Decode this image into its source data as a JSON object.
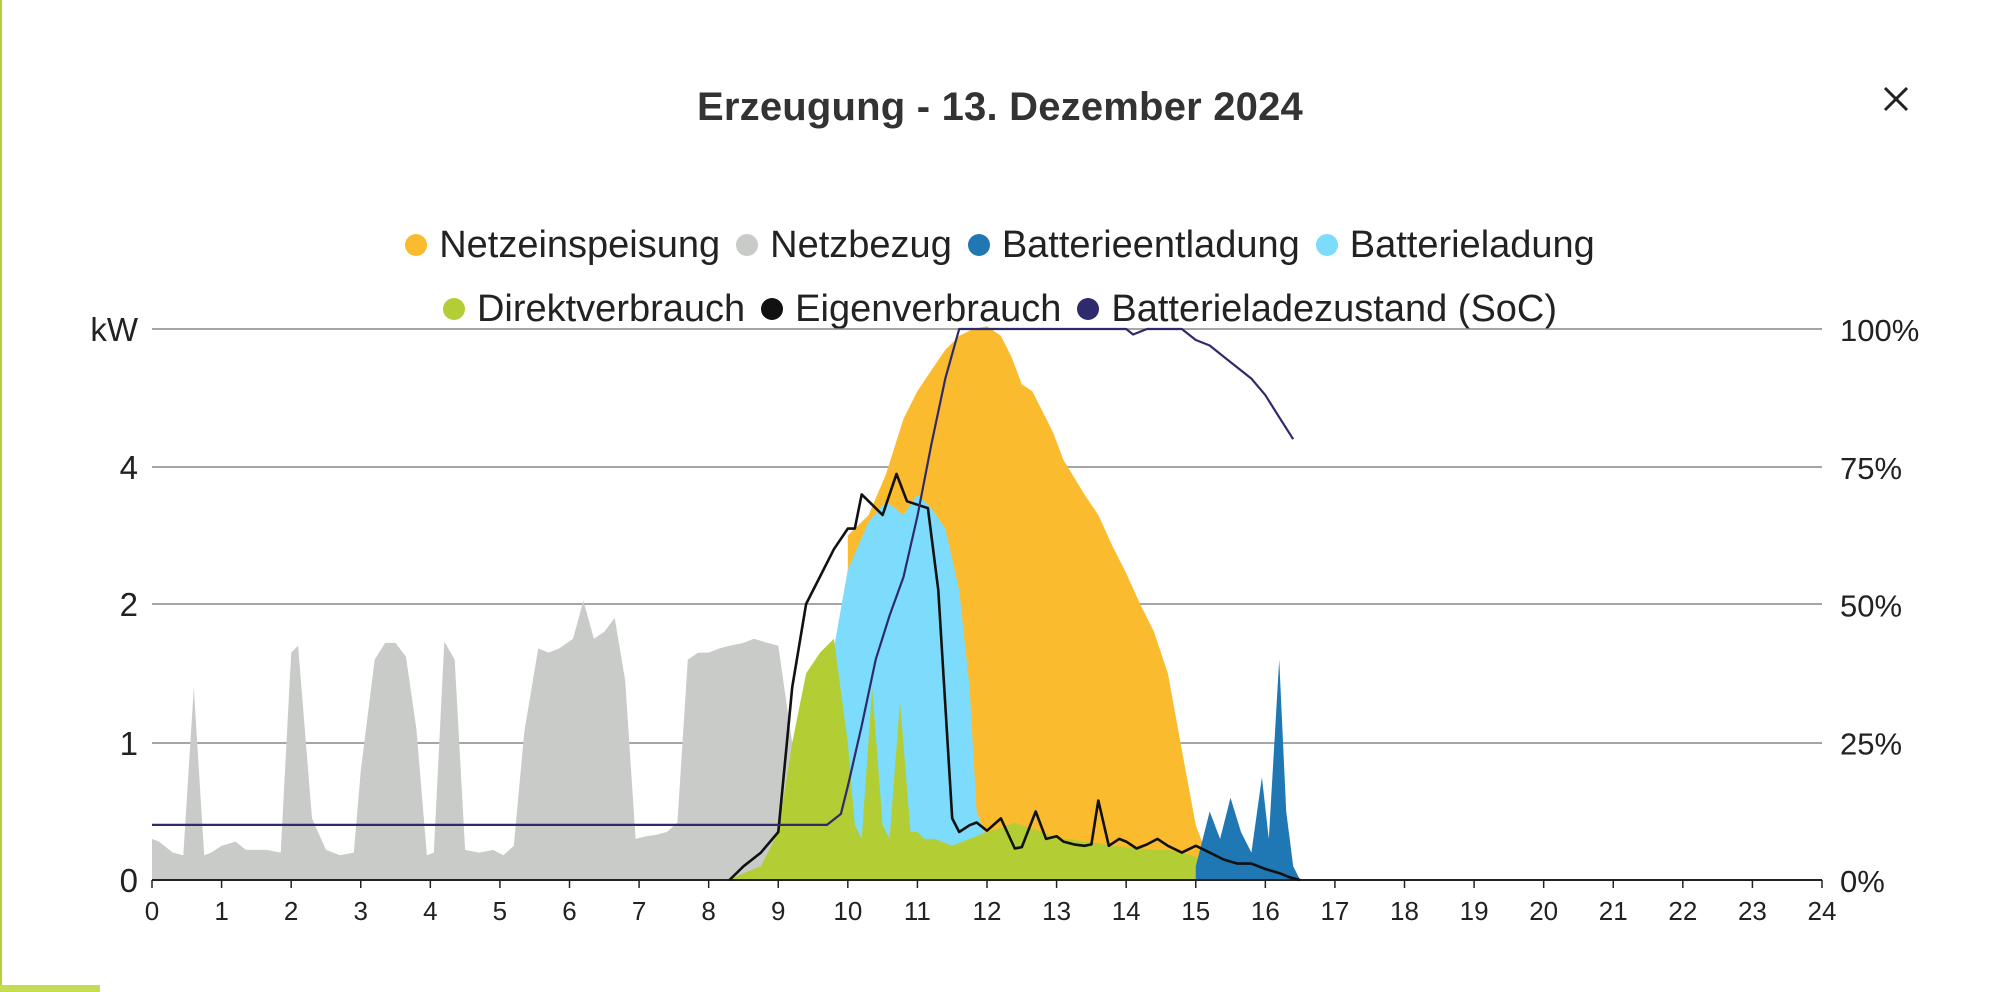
{
  "header": {
    "title": "Erzeugung - 13. Dezember 2024",
    "close_icon": "close-icon"
  },
  "colors": {
    "Netzeinspeisung": "#fbbb2f",
    "Netzbezug": "#c9cbc9",
    "Batterieentladung": "#1f78b4",
    "Batterieladung": "#7ddcfb",
    "Direktverbrauch": "#b3cd34",
    "Eigenverbrauch": "#111111",
    "Batterieladezustand (SoC)": "#2e2a6b",
    "gridline": "#888888"
  },
  "chart_data": {
    "type": "area",
    "title": "Erzeugung - 13. Dezember 2024",
    "xlabel": "",
    "ylabel": "kW",
    "y2label": "",
    "xlim": [
      0,
      24
    ],
    "x_ticks": [
      "0",
      "1",
      "2",
      "3",
      "4",
      "5",
      "6",
      "7",
      "8",
      "9",
      "10",
      "11",
      "12",
      "13",
      "14",
      "15",
      "16",
      "17",
      "18",
      "19",
      "20",
      "21",
      "22",
      "23",
      "24"
    ],
    "y_ticks_left": [
      "0",
      "1",
      "2",
      "4"
    ],
    "y_tick_values_left": [
      0,
      1,
      2,
      4
    ],
    "y_ticks_right": [
      "0%",
      "25%",
      "50%",
      "75%",
      "100%"
    ],
    "y_scale_left": "piecewise: 0-2 linear per 1 kW, 2-4 compressed",
    "grid": true,
    "legend_position": "top-center",
    "legend": [
      "Netzeinspeisung",
      "Netzbezug",
      "Batterieentladung",
      "Batterieladung",
      "Direktverbrauch",
      "Eigenverbrauch",
      "Batterieladezustand (SoC)"
    ],
    "series": [
      {
        "name": "Netzbezug",
        "kind": "area",
        "x": [
          0,
          0.1,
          0.3,
          0.45,
          0.6,
          0.75,
          0.85,
          1.0,
          1.2,
          1.35,
          1.5,
          1.65,
          1.85,
          2.0,
          2.1,
          2.3,
          2.5,
          2.7,
          2.9,
          3.0,
          3.2,
          3.35,
          3.5,
          3.65,
          3.8,
          3.95,
          4.05,
          4.2,
          4.35,
          4.5,
          4.7,
          4.9,
          5.05,
          5.2,
          5.35,
          5.55,
          5.7,
          5.85,
          6.05,
          6.2,
          6.35,
          6.5,
          6.65,
          6.8,
          6.95,
          7.1,
          7.25,
          7.4,
          7.55,
          7.7,
          7.85,
          8.0,
          8.15,
          8.3,
          8.5,
          8.65,
          8.85,
          9.0,
          9.2,
          9.4,
          9.55,
          9.7,
          9.8
        ],
        "values": [
          0.3,
          0.28,
          0.2,
          0.18,
          1.4,
          0.18,
          0.2,
          0.25,
          0.28,
          0.22,
          0.22,
          0.22,
          0.2,
          1.65,
          1.7,
          0.45,
          0.22,
          0.18,
          0.2,
          0.8,
          1.6,
          1.72,
          1.72,
          1.62,
          1.1,
          0.18,
          0.2,
          1.73,
          1.6,
          0.22,
          0.2,
          0.22,
          0.18,
          0.25,
          1.08,
          1.68,
          1.65,
          1.68,
          1.75,
          2.05,
          1.75,
          1.8,
          1.9,
          1.45,
          0.3,
          0.32,
          0.33,
          0.35,
          0.42,
          1.6,
          1.65,
          1.65,
          1.68,
          1.7,
          1.72,
          1.75,
          1.72,
          1.7,
          1.0,
          0.5,
          0.3,
          0.2,
          0.0
        ]
      },
      {
        "name": "Netzeinspeisung",
        "kind": "area",
        "x": [
          10.0,
          10.3,
          10.55,
          10.8,
          11.0,
          11.2,
          11.4,
          11.6,
          11.8,
          12.0,
          12.2,
          12.35,
          12.5,
          12.65,
          12.8,
          12.95,
          13.1,
          13.25,
          13.4,
          13.6,
          13.8,
          14.0,
          14.2,
          14.4,
          14.6,
          14.8,
          15.0,
          15.15,
          15.25
        ],
        "values": [
          3.0,
          3.3,
          3.9,
          4.35,
          4.55,
          4.7,
          4.85,
          4.95,
          5.0,
          5.02,
          4.95,
          4.8,
          4.6,
          4.55,
          4.4,
          4.25,
          4.05,
          3.85,
          3.6,
          3.3,
          2.85,
          2.45,
          2.0,
          1.8,
          1.5,
          0.95,
          0.4,
          0.2,
          0.0
        ]
      },
      {
        "name": "Batterieladung",
        "kind": "area",
        "x": [
          9.4,
          9.7,
          10.0,
          10.3,
          10.55,
          10.8,
          11.0,
          11.2,
          11.4,
          11.6,
          11.75,
          11.85,
          12.0
        ],
        "values": [
          0.4,
          1.4,
          2.5,
          3.2,
          3.5,
          3.3,
          3.6,
          3.4,
          3.1,
          2.2,
          1.4,
          0.5,
          0.3
        ]
      },
      {
        "name": "Direktverbrauch",
        "kind": "area",
        "x": [
          8.3,
          8.5,
          8.75,
          9.0,
          9.2,
          9.4,
          9.6,
          9.8,
          10.0,
          10.1,
          10.2,
          10.35,
          10.5,
          10.6,
          10.75,
          10.9,
          11.0,
          11.1,
          11.25,
          11.5,
          11.75,
          12.0,
          12.2,
          12.4,
          12.6,
          12.8,
          13.0,
          13.2,
          13.4,
          13.6,
          13.8,
          14.0,
          14.2,
          14.4,
          14.6,
          14.8,
          15.0,
          15.2,
          15.4,
          15.6,
          15.8,
          16.0,
          16.2,
          16.4,
          16.5
        ],
        "values": [
          0.0,
          0.05,
          0.1,
          0.35,
          1.0,
          1.5,
          1.65,
          1.75,
          1.0,
          0.4,
          0.3,
          1.4,
          0.4,
          0.3,
          1.3,
          0.35,
          0.35,
          0.3,
          0.3,
          0.25,
          0.3,
          0.35,
          0.38,
          0.42,
          0.38,
          0.35,
          0.3,
          0.3,
          0.28,
          0.27,
          0.25,
          0.24,
          0.23,
          0.22,
          0.22,
          0.2,
          0.17,
          0.15,
          0.12,
          0.1,
          0.08,
          0.07,
          0.05,
          0.02,
          0.0
        ]
      },
      {
        "name": "Batterieentladung",
        "kind": "area",
        "x": [
          15.0,
          15.2,
          15.35,
          15.5,
          15.65,
          15.8,
          15.95,
          16.05,
          16.2,
          16.3,
          16.4,
          16.5
        ],
        "values": [
          0.1,
          0.5,
          0.3,
          0.6,
          0.35,
          0.2,
          0.75,
          0.3,
          1.6,
          0.5,
          0.1,
          0.0
        ]
      },
      {
        "name": "Eigenverbrauch",
        "kind": "line",
        "x": [
          8.3,
          8.5,
          8.75,
          9.0,
          9.2,
          9.4,
          9.6,
          9.8,
          10.0,
          10.1,
          10.2,
          10.35,
          10.5,
          10.7,
          10.85,
          11.0,
          11.15,
          11.3,
          11.5,
          11.6,
          11.75,
          11.85,
          12.0,
          12.2,
          12.4,
          12.5,
          12.7,
          12.85,
          13.0,
          13.1,
          13.25,
          13.4,
          13.5,
          13.6,
          13.75,
          13.9,
          14.0,
          14.15,
          14.3,
          14.45,
          14.6,
          14.8,
          15.0,
          15.2,
          15.4,
          15.6,
          15.8,
          16.0,
          16.2,
          16.35,
          16.5
        ],
        "values": [
          0.0,
          0.1,
          0.2,
          0.35,
          1.4,
          2.0,
          2.4,
          2.8,
          3.1,
          3.1,
          3.6,
          3.45,
          3.3,
          3.9,
          3.5,
          3.45,
          3.4,
          2.2,
          0.45,
          0.35,
          0.4,
          0.42,
          0.36,
          0.45,
          0.23,
          0.24,
          0.5,
          0.3,
          0.32,
          0.28,
          0.26,
          0.25,
          0.26,
          0.58,
          0.25,
          0.3,
          0.28,
          0.23,
          0.26,
          0.3,
          0.25,
          0.2,
          0.25,
          0.2,
          0.15,
          0.12,
          0.12,
          0.08,
          0.05,
          0.02,
          0.0
        ]
      },
      {
        "name": "Batterieladezustand (SoC)",
        "kind": "line",
        "axis": "right",
        "x": [
          0,
          9.7,
          9.9,
          10.0,
          10.2,
          10.4,
          10.6,
          10.8,
          11.0,
          11.2,
          11.4,
          11.6,
          11.8,
          12.0,
          12.5,
          13.0,
          13.5,
          14.0,
          14.1,
          14.3,
          14.5,
          14.8,
          15.0,
          15.2,
          15.4,
          15.6,
          15.8,
          16.0,
          16.2,
          16.4
        ],
        "values": [
          10,
          10,
          12,
          17,
          28,
          40,
          48,
          55,
          66,
          79,
          91,
          100,
          100.5,
          101,
          101,
          101,
          100.5,
          100,
          99,
          100.5,
          100.5,
          100,
          98,
          97,
          95,
          93,
          91,
          88,
          84,
          80
        ]
      }
    ]
  }
}
